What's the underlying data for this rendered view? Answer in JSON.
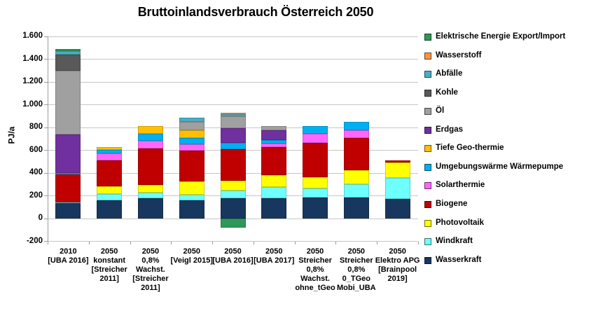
{
  "title": "Bruttoinlandsverbrauch Österreich 2050",
  "y_axis": {
    "label": "PJ/a",
    "tick_labels": [
      "1.600",
      "1.400",
      "1.200",
      "1.000",
      "800",
      "600",
      "400",
      "200",
      "0",
      "-200"
    ],
    "min": -200,
    "max": 1600,
    "step": 200
  },
  "chart_data": {
    "type": "bar",
    "stacked": true,
    "title": "Bruttoinlandsverbrauch Österreich 2050",
    "xlabel": "",
    "ylabel": "PJ/a",
    "ylim": [
      -200,
      1600
    ],
    "grid": true,
    "legend_position": "right",
    "categories": [
      "2010\n[UBA 2016]",
      "2050\nkonstant\n[Streicher\n2011]",
      "2050\n0,8%\nWachst.\n[Streicher\n2011]",
      "2050\n[Veigl 2015]",
      "2050\n[UBA 2016]",
      "2050\n[UBA 2017]",
      "2050\nStreicher\n0,8%\nWachst.\nohne_tGeo",
      "2050\nStreicher\n0,8%\n0_TGeo\nMobi_UBA",
      "2050\nElektro APG\n[Brainpool\n2019]"
    ],
    "series": [
      {
        "name": "Wasserkraft",
        "color": "#17375E",
        "values": [
          138,
          160,
          180,
          160,
          177,
          177,
          185,
          183,
          170
        ]
      },
      {
        "name": "Windkraft",
        "color": "#6EFFFF",
        "values": [
          4,
          55,
          48,
          47,
          71,
          100,
          82,
          117,
          185
        ]
      },
      {
        "name": "Photovoltaik",
        "color": "#FFFF00",
        "values": [
          0,
          70,
          67,
          119,
          82,
          107,
          96,
          123,
          139
        ]
      },
      {
        "name": "Biogene",
        "color": "#C00000",
        "values": [
          248,
          225,
          322,
          271,
          277,
          246,
          303,
          286,
          17
        ]
      },
      {
        "name": "Solarthermie",
        "color": "#FF66FF",
        "values": [
          0,
          60,
          68,
          55,
          0,
          26,
          79,
          68,
          0
        ]
      },
      {
        "name": "Umgebungswärme Wärmepumpe",
        "color": "#00B0F0",
        "values": [
          10,
          35,
          62,
          57,
          58,
          35,
          65,
          70,
          0
        ]
      },
      {
        "name": "Tiefe Geo-thermie",
        "color": "#FFC000",
        "values": [
          0,
          25,
          63,
          68,
          0,
          0,
          0,
          0,
          0
        ]
      },
      {
        "name": "Erdgas",
        "color": "#7030A0",
        "values": [
          340,
          0,
          0,
          0,
          127,
          82,
          0,
          0,
          0
        ]
      },
      {
        "name": "Öl",
        "color": "#A0A0A0",
        "values": [
          560,
          0,
          0,
          70,
          106,
          37,
          0,
          0,
          0
        ]
      },
      {
        "name": "Kohle",
        "color": "#595959",
        "values": [
          140,
          0,
          0,
          0,
          0,
          0,
          0,
          0,
          0
        ]
      },
      {
        "name": "Abfälle",
        "color": "#4BACC6",
        "values": [
          32,
          0,
          0,
          37,
          17,
          0,
          0,
          0,
          0
        ]
      },
      {
        "name": "Wasserstoff",
        "color": "#F79646",
        "values": [
          0,
          0,
          0,
          0,
          14,
          0,
          0,
          0,
          0
        ]
      },
      {
        "name": "Elektrische Energie Export/Import",
        "color": "#2E9858",
        "values": [
          15,
          0,
          0,
          0,
          -80,
          0,
          0,
          0,
          0
        ]
      }
    ]
  }
}
